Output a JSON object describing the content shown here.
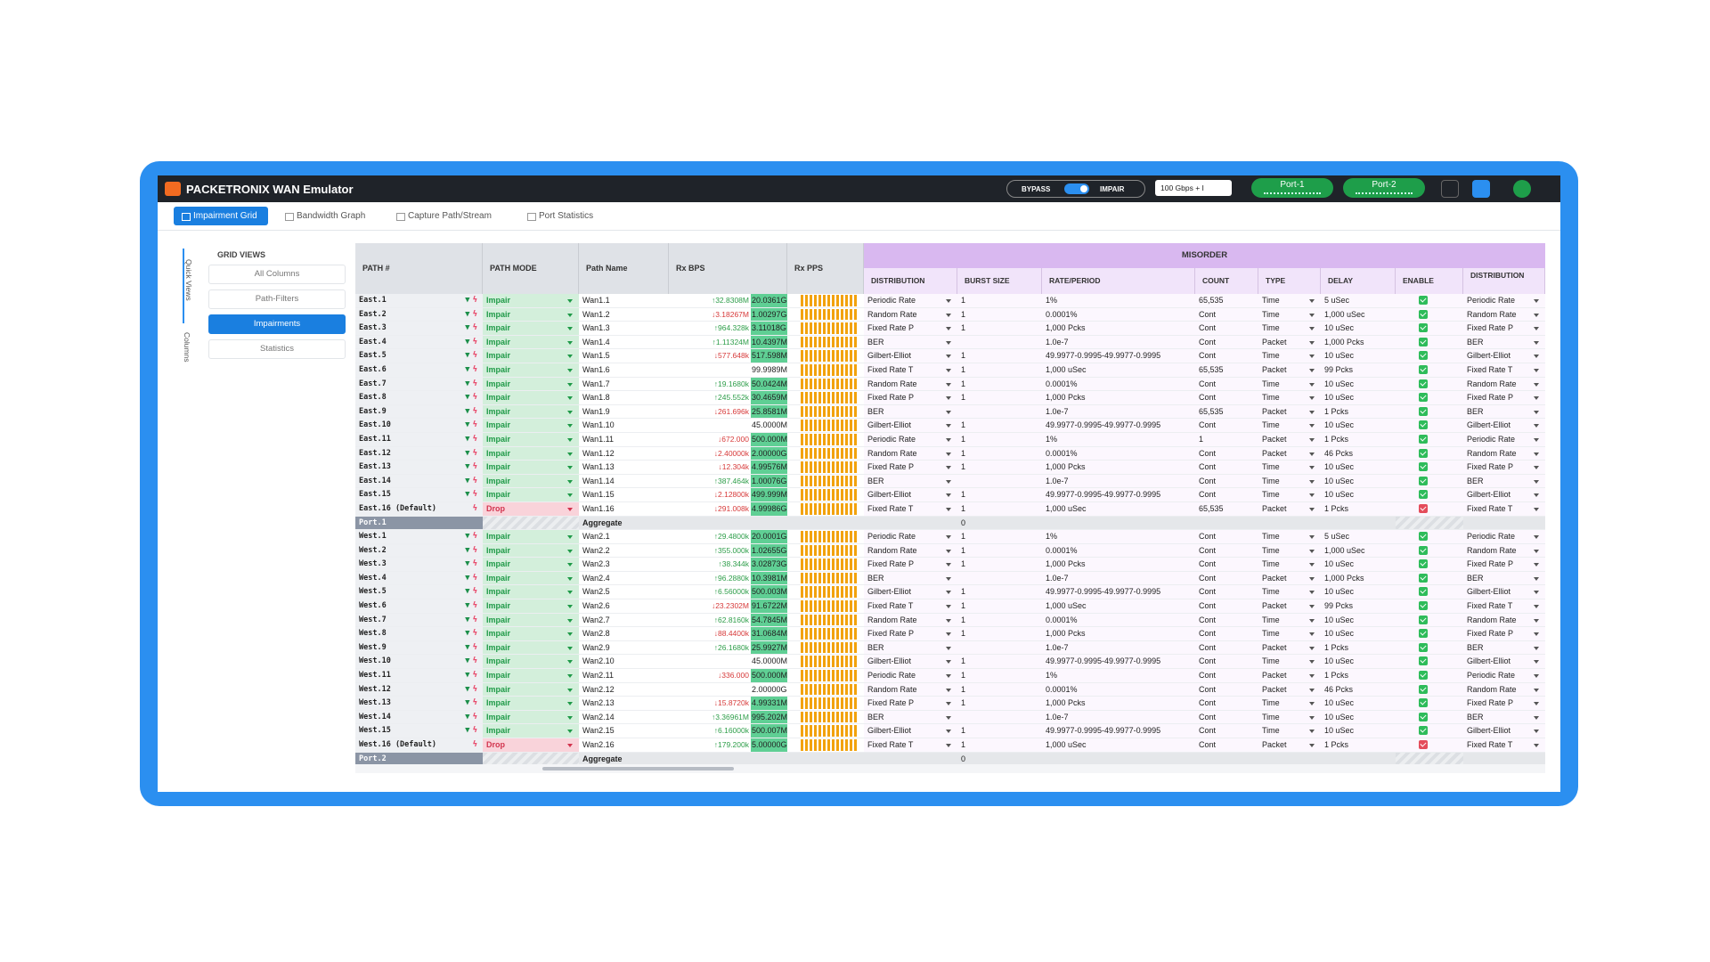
{
  "header": {
    "brand": "PACKETRONIX WAN Emulator",
    "bypass": "BYPASS",
    "impair": "IMPAIR",
    "speed": "100 Gbps + I",
    "ports": [
      "Port-1",
      "Port-2"
    ]
  },
  "tabs": [
    "Impairment Grid",
    "Bandwidth Graph",
    "Capture Path/Stream",
    "Port Statistics"
  ],
  "active_tab": 0,
  "sidebar": {
    "title": "GRID VIEWS",
    "views": [
      "All Columns",
      "Path-Filters",
      "Impairments",
      "Statistics"
    ],
    "active_view": 2,
    "rails": [
      "Quick Views",
      "Columns"
    ]
  },
  "grid": {
    "group_header": "MISORDER",
    "columns": [
      "PATH #",
      "PATH MODE",
      "Path Name",
      "Rx BPS",
      "Rx PPS",
      "DISTRIBUTION",
      "BURST SIZE",
      "RATE/PERIOD",
      "COUNT",
      "TYPE",
      "DELAY",
      "ENABLE",
      "DISTRIBUTION"
    ],
    "sections": [
      {
        "rows": [
          [
            "East.1",
            "Impair",
            "Wan1.1",
            "↑32.8308M",
            "20.0361G",
            "Periodic Rate",
            1,
            "1%",
            "65,535",
            "Time",
            "5 uSec",
            true
          ],
          [
            "East.2",
            "Impair",
            "Wan1.2",
            "↓3.18267M",
            "1.00297G",
            "Random Rate",
            1,
            "0.0001%",
            "Cont",
            "Time",
            "1,000 uSec",
            true
          ],
          [
            "East.3",
            "Impair",
            "Wan1.3",
            "↑964.328k",
            "3.11018G",
            "Fixed Rate P",
            1,
            "1,000 Pcks",
            "Cont",
            "Time",
            "10 uSec",
            true
          ],
          [
            "East.4",
            "Impair",
            "Wan1.4",
            "↑1.11324M",
            "10.4397M",
            "BER",
            null,
            "1.0e-7",
            "Cont",
            "Packet",
            "1,000 Pcks",
            true
          ],
          [
            "East.5",
            "Impair",
            "Wan1.5",
            "↓577.648k",
            "517.598M",
            "Gilbert-Elliot",
            1,
            "49.9977-0.9995-49.9977-0.9995",
            "Cont",
            "Time",
            "10 uSec",
            true
          ],
          [
            "East.6",
            "Impair",
            "Wan1.6",
            null,
            "99.9989M",
            "Fixed Rate T",
            1,
            "1,000 uSec",
            "65,535",
            "Packet",
            "99 Pcks",
            true
          ],
          [
            "East.7",
            "Impair",
            "Wan1.7",
            "↑19.1680k",
            "50.0424M",
            "Random Rate",
            1,
            "0.0001%",
            "Cont",
            "Time",
            "10 uSec",
            true
          ],
          [
            "East.8",
            "Impair",
            "Wan1.8",
            "↑245.552k",
            "30.4659M",
            "Fixed Rate P",
            1,
            "1,000 Pcks",
            "Cont",
            "Time",
            "10 uSec",
            true
          ],
          [
            "East.9",
            "Impair",
            "Wan1.9",
            "↓261.696k",
            "25.8581M",
            "BER",
            null,
            "1.0e-7",
            "65,535",
            "Packet",
            "1 Pcks",
            true
          ],
          [
            "East.10",
            "Impair",
            "Wan1.10",
            null,
            "45.0000M",
            "Gilbert-Elliot",
            1,
            "49.9977-0.9995-49.9977-0.9995",
            "Cont",
            "Time",
            "10 uSec",
            true
          ],
          [
            "East.11",
            "Impair",
            "Wan1.11",
            "↓672.000",
            "500.000M",
            "Periodic Rate",
            1,
            "1%",
            "1",
            "Packet",
            "1 Pcks",
            true
          ],
          [
            "East.12",
            "Impair",
            "Wan1.12",
            "↓2.40000k",
            "2.00000G",
            "Random Rate",
            1,
            "0.0001%",
            "Cont",
            "Packet",
            "46 Pcks",
            true
          ],
          [
            "East.13",
            "Impair",
            "Wan1.13",
            "↓12.304k",
            "4.99576M",
            "Fixed Rate P",
            1,
            "1,000 Pcks",
            "Cont",
            "Time",
            "10 uSec",
            true
          ],
          [
            "East.14",
            "Impair",
            "Wan1.14",
            "↑387.464k",
            "1.00076G",
            "BER",
            null,
            "1.0e-7",
            "Cont",
            "Time",
            "10 uSec",
            true
          ],
          [
            "East.15",
            "Impair",
            "Wan1.15",
            "↓2.12800k",
            "499.999M",
            "Gilbert-Elliot",
            1,
            "49.9977-0.9995-49.9977-0.9995",
            "Cont",
            "Time",
            "10 uSec",
            true
          ],
          [
            "East.16 (Default)",
            "Drop",
            "Wan1.16",
            "↓291.008k",
            "4.99986G",
            "Fixed Rate T",
            1,
            "1,000 uSec",
            "65,535",
            "Packet",
            "1 Pcks",
            false
          ]
        ],
        "aggregate": {
          "path": "Port.1",
          "name": "Aggregate",
          "burst": 0
        }
      },
      {
        "rows": [
          [
            "West.1",
            "Impair",
            "Wan2.1",
            "↑29.4800k",
            "20.0001G",
            "Periodic Rate",
            1,
            "1%",
            "Cont",
            "Time",
            "5 uSec",
            true
          ],
          [
            "West.2",
            "Impair",
            "Wan2.2",
            "↑355.000k",
            "1.02655G",
            "Random Rate",
            1,
            "0.0001%",
            "Cont",
            "Time",
            "1,000 uSec",
            true
          ],
          [
            "West.3",
            "Impair",
            "Wan2.3",
            "↑38.344k",
            "3.02873G",
            "Fixed Rate P",
            1,
            "1,000 Pcks",
            "Cont",
            "Time",
            "10 uSec",
            true
          ],
          [
            "West.4",
            "Impair",
            "Wan2.4",
            "↑96.2880k",
            "10.3981M",
            "BER",
            null,
            "1.0e-7",
            "Cont",
            "Packet",
            "1,000 Pcks",
            true
          ],
          [
            "West.5",
            "Impair",
            "Wan2.5",
            "↑6.56000k",
            "500.003M",
            "Gilbert-Elliot",
            1,
            "49.9977-0.9995-49.9977-0.9995",
            "Cont",
            "Time",
            "10 uSec",
            true
          ],
          [
            "West.6",
            "Impair",
            "Wan2.6",
            "↓23.2302M",
            "91.6722M",
            "Fixed Rate T",
            1,
            "1,000 uSec",
            "Cont",
            "Packet",
            "99 Pcks",
            true
          ],
          [
            "West.7",
            "Impair",
            "Wan2.7",
            "↑62.8160k",
            "54.7845M",
            "Random Rate",
            1,
            "0.0001%",
            "Cont",
            "Time",
            "10 uSec",
            true
          ],
          [
            "West.8",
            "Impair",
            "Wan2.8",
            "↓88.4400k",
            "31.0684M",
            "Fixed Rate P",
            1,
            "1,000 Pcks",
            "Cont",
            "Time",
            "10 uSec",
            true
          ],
          [
            "West.9",
            "Impair",
            "Wan2.9",
            "↑26.1680k",
            "25.9927M",
            "BER",
            null,
            "1.0e-7",
            "Cont",
            "Packet",
            "1 Pcks",
            true
          ],
          [
            "West.10",
            "Impair",
            "Wan2.10",
            null,
            "45.0000M",
            "Gilbert-Elliot",
            1,
            "49.9977-0.9995-49.9977-0.9995",
            "Cont",
            "Time",
            "10 uSec",
            true
          ],
          [
            "West.11",
            "Impair",
            "Wan2.11",
            "↓336.000",
            "500.000M",
            "Periodic Rate",
            1,
            "1%",
            "Cont",
            "Packet",
            "1 Pcks",
            true
          ],
          [
            "West.12",
            "Impair",
            "Wan2.12",
            null,
            "2.00000G",
            "Random Rate",
            1,
            "0.0001%",
            "Cont",
            "Packet",
            "46 Pcks",
            true
          ],
          [
            "West.13",
            "Impair",
            "Wan2.13",
            "↓15.8720k",
            "4.99331M",
            "Fixed Rate P",
            1,
            "1,000 Pcks",
            "Cont",
            "Time",
            "10 uSec",
            true
          ],
          [
            "West.14",
            "Impair",
            "Wan2.14",
            "↑3.36961M",
            "995.202M",
            "BER",
            null,
            "1.0e-7",
            "Cont",
            "Time",
            "10 uSec",
            true
          ],
          [
            "West.15",
            "Impair",
            "Wan2.15",
            "↑6.16000k",
            "500.007M",
            "Gilbert-Elliot",
            1,
            "49.9977-0.9995-49.9977-0.9995",
            "Cont",
            "Time",
            "10 uSec",
            true
          ],
          [
            "West.16 (Default)",
            "Drop",
            "Wan2.16",
            "↑179.200k",
            "5.00000G",
            "Fixed Rate T",
            1,
            "1,000 uSec",
            "Cont",
            "Packet",
            "1 Pcks",
            false
          ]
        ],
        "aggregate": {
          "path": "Port.2",
          "name": "Aggregate",
          "burst": 0
        }
      }
    ]
  }
}
